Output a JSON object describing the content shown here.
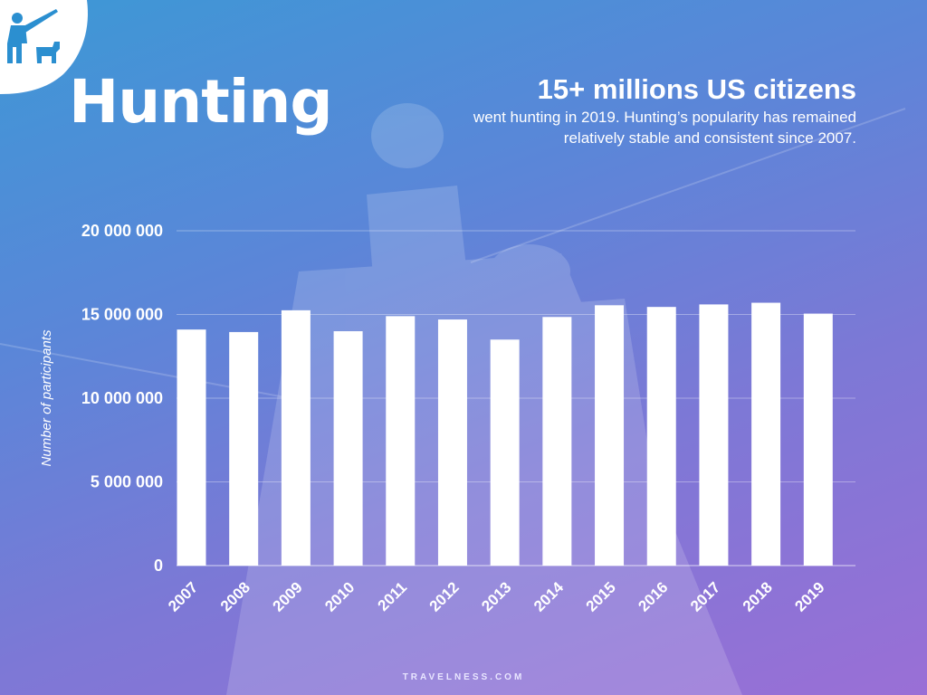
{
  "page": {
    "title": "Hunting",
    "headline": "15+ millions US citizens",
    "subtext": "went hunting in 2019. Hunting’s popularity has remained relatively stable and consistent since 2007.",
    "footer": "TRAVELNESS.COM",
    "logo_icon": "hunter-with-dog-icon",
    "colors": {
      "background_top": "#3d98d6",
      "background_bottom": "#9a6fd6",
      "bars": "#ffffff",
      "text": "#ffffff"
    }
  },
  "chart_data": {
    "type": "bar",
    "title": "",
    "xlabel": "",
    "ylabel": "Number of participants",
    "categories": [
      "2007",
      "2008",
      "2009",
      "2010",
      "2011",
      "2012",
      "2013",
      "2014",
      "2015",
      "2016",
      "2017",
      "2018",
      "2019"
    ],
    "values": [
      14100000,
      13950000,
      15250000,
      14000000,
      14900000,
      14700000,
      13500000,
      14850000,
      15550000,
      15450000,
      15600000,
      15700000,
      15050000
    ],
    "yticks": [
      0,
      5000000,
      10000000,
      15000000,
      20000000
    ],
    "ytick_labels": [
      "0",
      "5 000 000",
      "10 000 000",
      "15 000 000",
      "20 000 000"
    ],
    "ylim": [
      0,
      20000000
    ],
    "grid": true,
    "legend": "none"
  }
}
